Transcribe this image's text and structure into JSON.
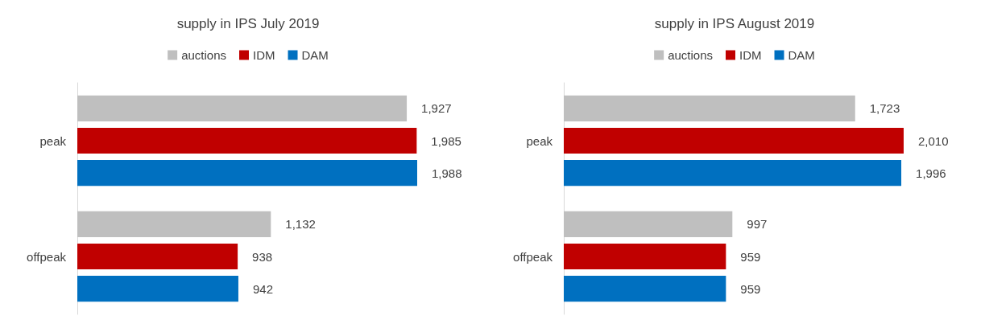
{
  "chart_data": [
    {
      "type": "bar",
      "orientation": "horizontal",
      "title": "supply in IPS July 2019",
      "categories": [
        "peak",
        "offpeak"
      ],
      "series": [
        {
          "name": "auctions",
          "color": "#bfbfbf",
          "values": [
            1927,
            1132
          ],
          "value_labels": [
            "1,927",
            "1,132"
          ]
        },
        {
          "name": "IDM",
          "color": "#c00000",
          "values": [
            1985,
            938
          ],
          "value_labels": [
            "1,985",
            "938"
          ]
        },
        {
          "name": "DAM",
          "color": "#0070c0",
          "values": [
            1988,
            942
          ],
          "value_labels": [
            "1,988",
            "942"
          ]
        }
      ],
      "legend": "top"
    },
    {
      "type": "bar",
      "orientation": "horizontal",
      "title": "supply in IPS August 2019",
      "categories": [
        "peak",
        "offpeak"
      ],
      "series": [
        {
          "name": "auctions",
          "color": "#bfbfbf",
          "values": [
            1723,
            997
          ],
          "value_labels": [
            "1,723",
            "997"
          ]
        },
        {
          "name": "IDM",
          "color": "#c00000",
          "values": [
            2010,
            959
          ],
          "value_labels": [
            "2,010",
            "959"
          ]
        },
        {
          "name": "DAM",
          "color": "#0070c0",
          "values": [
            1996,
            959
          ],
          "value_labels": [
            "1,996",
            "959"
          ]
        }
      ],
      "legend": "top"
    }
  ]
}
